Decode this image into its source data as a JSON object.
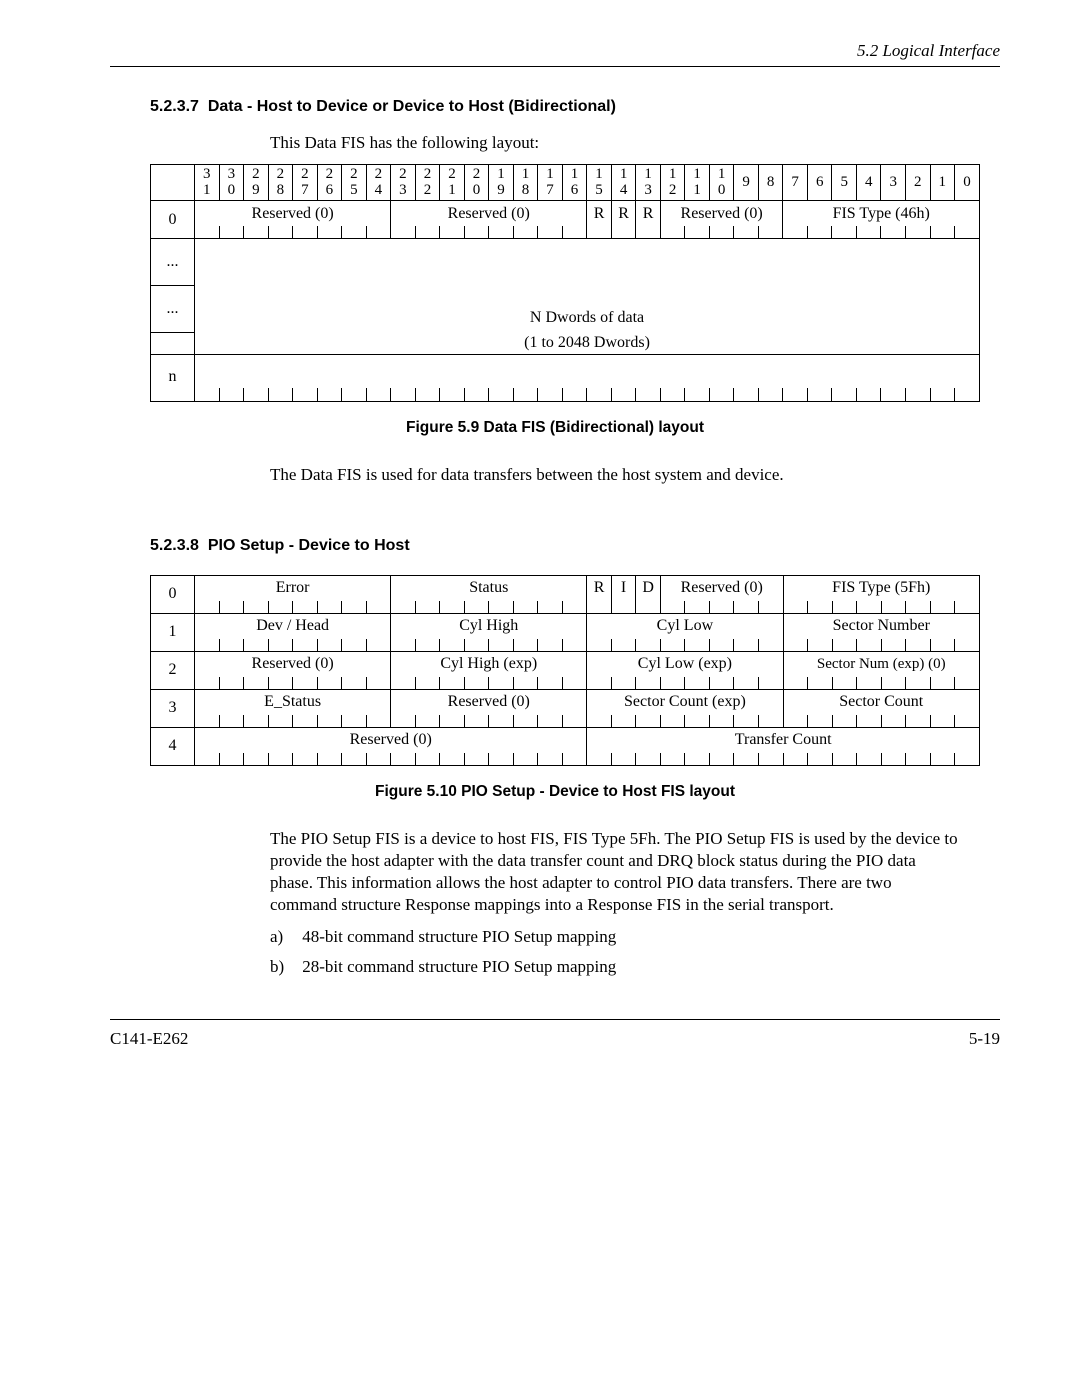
{
  "header": {
    "section_ref": "5.2  Logical Interface"
  },
  "sec1": {
    "num": "5.2.3.7",
    "title": "Data - Host to Device or Device to Host (Bidirectional)",
    "intro": "This Data FIS has the following layout:",
    "bits_top": [
      "3",
      "3",
      "2",
      "2",
      "2",
      "2",
      "2",
      "2",
      "2",
      "2",
      "2",
      "2",
      "1",
      "1",
      "1",
      "1",
      "1",
      "1",
      "1",
      "1",
      "1",
      "1",
      "9",
      "8",
      "7",
      "6",
      "5",
      "4",
      "3",
      "2",
      "1",
      "0"
    ],
    "bits_bot": [
      "1",
      "0",
      "9",
      "8",
      "7",
      "6",
      "5",
      "4",
      "3",
      "2",
      "1",
      "0",
      "9",
      "8",
      "7",
      "6",
      "5",
      "4",
      "3",
      "2",
      "1",
      "0",
      "",
      "",
      "",
      "",
      "",
      "",
      "",
      "",
      "",
      ""
    ],
    "row0": {
      "label": "0",
      "reserved_a": "Reserved (0)",
      "reserved_b": "Reserved (0)",
      "r": "R",
      "reserved_c": "Reserved (0)",
      "fistype": "FIS Type (46h)"
    },
    "dots": "...",
    "ndwords_l1": "N Dwords of data",
    "ndwords_l2": "(1 to 2048 Dwords)",
    "n": "n",
    "caption": "Figure 5.9  Data FIS (Bidirectional) layout",
    "desc": "The Data FIS is used for data transfers between the host system and device."
  },
  "sec2": {
    "num": "5.2.3.8",
    "title": "PIO Setup - Device to Host",
    "rows": [
      {
        "label": "0",
        "cells": [
          "Error",
          "Status",
          "R",
          "I",
          "D",
          "Reserved (0)",
          "FIS Type (5Fh)"
        ]
      },
      {
        "label": "1",
        "cells": [
          "Dev / Head",
          "Cyl High",
          "Cyl Low",
          "Sector Number"
        ]
      },
      {
        "label": "2",
        "cells": [
          "Reserved (0)",
          "Cyl High (exp)",
          "Cyl Low (exp)",
          "Sector Num (exp) (0)"
        ]
      },
      {
        "label": "3",
        "cells": [
          "E_Status",
          "Reserved (0)",
          "Sector Count (exp)",
          "Sector Count"
        ]
      },
      {
        "label": "4",
        "cells": [
          "Reserved (0)",
          "Transfer Count"
        ]
      }
    ],
    "caption": "Figure 5.10  PIO Setup - Device to Host FIS layout",
    "desc": "The PIO Setup FIS is a device to host FIS, FIS Type 5Fh. The PIO Setup FIS is used by the device to provide the host adapter with the data transfer count and DRQ block status during the PIO data phase. This information allows the host adapter to control PIO data transfers. There are two command structure Response mappings into a Response FIS in the serial transport.",
    "list": [
      {
        "letter": "a)",
        "text": "48-bit command structure PIO Setup mapping"
      },
      {
        "letter": "b)",
        "text": "28-bit command structure PIO Setup mapping"
      }
    ]
  },
  "footer": {
    "left": "C141-E262",
    "right": "5-19"
  }
}
